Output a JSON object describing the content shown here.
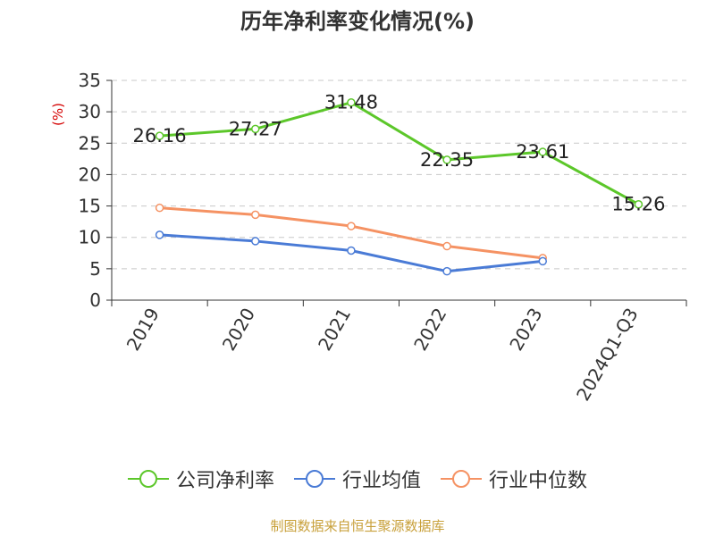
{
  "chart_data": {
    "type": "line",
    "title": "历年净利率变化情况(%)",
    "ylabel": "(%)",
    "xlabel": "",
    "categories": [
      "2019",
      "2020",
      "2021",
      "2022",
      "2023",
      "2024Q1-Q3"
    ],
    "ylim": [
      0,
      35
    ],
    "yticks": [
      0,
      5,
      10,
      15,
      20,
      25,
      30,
      35
    ],
    "grid": true,
    "legend_position": "bottom",
    "series": [
      {
        "name": "公司净利率",
        "color": "#5cc72a",
        "values": [
          26.16,
          27.27,
          31.48,
          22.35,
          23.61,
          15.26
        ],
        "labels": [
          "26.16",
          "27.27",
          "31.48",
          "22.35",
          "23.61",
          "15.26"
        ]
      },
      {
        "name": "行业均值",
        "color": "#4a7bd6",
        "values": [
          10.4,
          9.4,
          7.9,
          4.6,
          6.2,
          null
        ]
      },
      {
        "name": "行业中位数",
        "color": "#f59263",
        "values": [
          14.7,
          13.6,
          11.8,
          8.6,
          6.7,
          null
        ]
      }
    ]
  },
  "source": "制图数据来自恒生聚源数据库"
}
